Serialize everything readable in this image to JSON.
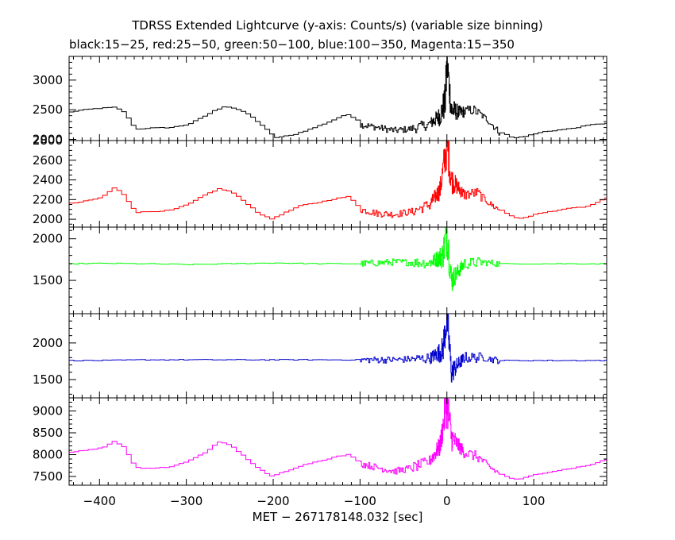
{
  "title": "TDRSS Extended Lightcurve (y-axis: Counts/s) (variable size binning)",
  "subtitle": "black:15−25, red:25−50, green:50−100, blue:100−350, Magenta:15−350",
  "xlabel": "MET − 267178148.032 [sec]",
  "chart_data": {
    "type": "line",
    "x_range": [
      -435,
      184
    ],
    "x_ticks": [
      -400,
      -300,
      -200,
      -100,
      0,
      100
    ],
    "x_tick_labels": [
      "−400",
      "−300",
      "−200",
      "−100",
      "0",
      "100"
    ],
    "burst_time": 0,
    "panels": [
      {
        "name": "black",
        "color": "#000000",
        "ylim": [
          1980,
          3400
        ],
        "y_ticks": [
          2000,
          2500,
          3000
        ],
        "y_minor_step": 100,
        "segments": [
          [
            -435,
            2460
          ],
          [
            -425,
            2490
          ],
          [
            -405,
            2520
          ],
          [
            -385,
            2540
          ],
          [
            -375,
            2480
          ],
          [
            -360,
            2170
          ],
          [
            -345,
            2190
          ],
          [
            -320,
            2200
          ],
          [
            -300,
            2250
          ],
          [
            -285,
            2360
          ],
          [
            -270,
            2480
          ],
          [
            -258,
            2560
          ],
          [
            -245,
            2520
          ],
          [
            -230,
            2420
          ],
          [
            -215,
            2240
          ],
          [
            -200,
            2030
          ],
          [
            -180,
            2070
          ],
          [
            -160,
            2170
          ],
          [
            -140,
            2280
          ],
          [
            -125,
            2380
          ],
          [
            -115,
            2420
          ],
          [
            -105,
            2330
          ],
          [
            -100,
            2250
          ],
          [
            -80,
            2200
          ],
          [
            -60,
            2150
          ],
          [
            -40,
            2180
          ],
          [
            -20,
            2260
          ],
          [
            -8,
            2400
          ],
          [
            -2,
            2650
          ],
          [
            0,
            3300
          ],
          [
            5,
            2500
          ],
          [
            15,
            2450
          ],
          [
            30,
            2500
          ],
          [
            45,
            2350
          ],
          [
            60,
            2120
          ],
          [
            75,
            2020
          ],
          [
            90,
            2060
          ],
          [
            110,
            2130
          ],
          [
            140,
            2180
          ],
          [
            170,
            2260
          ],
          [
            184,
            2270
          ]
        ]
      },
      {
        "name": "red",
        "color": "#ff0000",
        "ylim": [
          1920,
          2800
        ],
        "y_ticks": [
          2000,
          2200,
          2400,
          2600,
          2800
        ],
        "y_minor_step": 50,
        "segments": [
          [
            -435,
            2160
          ],
          [
            -420,
            2180
          ],
          [
            -400,
            2220
          ],
          [
            -385,
            2320
          ],
          [
            -375,
            2260
          ],
          [
            -360,
            2070
          ],
          [
            -340,
            2080
          ],
          [
            -320,
            2090
          ],
          [
            -300,
            2150
          ],
          [
            -280,
            2250
          ],
          [
            -265,
            2310
          ],
          [
            -250,
            2280
          ],
          [
            -235,
            2180
          ],
          [
            -220,
            2070
          ],
          [
            -205,
            2000
          ],
          [
            -190,
            2060
          ],
          [
            -170,
            2140
          ],
          [
            -150,
            2170
          ],
          [
            -130,
            2210
          ],
          [
            -115,
            2230
          ],
          [
            -100,
            2100
          ],
          [
            -80,
            2060
          ],
          [
            -60,
            2050
          ],
          [
            -40,
            2080
          ],
          [
            -20,
            2150
          ],
          [
            -8,
            2300
          ],
          [
            0,
            2780
          ],
          [
            5,
            2400
          ],
          [
            20,
            2250
          ],
          [
            35,
            2270
          ],
          [
            50,
            2150
          ],
          [
            65,
            2070
          ],
          [
            80,
            2000
          ],
          [
            100,
            2050
          ],
          [
            130,
            2100
          ],
          [
            160,
            2130
          ],
          [
            184,
            2220
          ]
        ]
      },
      {
        "name": "green",
        "color": "#00ff00",
        "ylim": [
          1100,
          2140
        ],
        "y_ticks": [
          1500,
          2000
        ],
        "y_minor_step": 100,
        "segments": [
          [
            -435,
            1700
          ],
          [
            -400,
            1705
          ],
          [
            -350,
            1700
          ],
          [
            -300,
            1690
          ],
          [
            -250,
            1700
          ],
          [
            -200,
            1710
          ],
          [
            -150,
            1700
          ],
          [
            -100,
            1700
          ],
          [
            -60,
            1720
          ],
          [
            -20,
            1710
          ],
          [
            -5,
            1800
          ],
          [
            0,
            2100
          ],
          [
            5,
            1500
          ],
          [
            20,
            1700
          ],
          [
            40,
            1720
          ],
          [
            60,
            1700
          ],
          [
            100,
            1700
          ],
          [
            140,
            1700
          ],
          [
            184,
            1700
          ]
        ]
      },
      {
        "name": "blue",
        "color": "#0000cc",
        "ylim": [
          1250,
          2400
        ],
        "y_ticks": [
          1500,
          2000
        ],
        "y_minor_step": 100,
        "segments": [
          [
            -435,
            1760
          ],
          [
            -400,
            1760
          ],
          [
            -350,
            1770
          ],
          [
            -300,
            1770
          ],
          [
            -250,
            1770
          ],
          [
            -200,
            1770
          ],
          [
            -150,
            1770
          ],
          [
            -100,
            1770
          ],
          [
            -60,
            1770
          ],
          [
            -20,
            1790
          ],
          [
            -5,
            1900
          ],
          [
            0,
            2380
          ],
          [
            5,
            1600
          ],
          [
            20,
            1800
          ],
          [
            40,
            1800
          ],
          [
            60,
            1760
          ],
          [
            100,
            1760
          ],
          [
            140,
            1760
          ],
          [
            184,
            1760
          ]
        ]
      },
      {
        "name": "magenta",
        "color": "#ff00ff",
        "ylim": [
          7300,
          9300
        ],
        "y_ticks": [
          7500,
          8000,
          8500,
          9000
        ],
        "y_minor_step": 100,
        "segments": [
          [
            -435,
            8050
          ],
          [
            -420,
            8100
          ],
          [
            -400,
            8150
          ],
          [
            -385,
            8300
          ],
          [
            -375,
            8200
          ],
          [
            -360,
            7700
          ],
          [
            -340,
            7680
          ],
          [
            -320,
            7720
          ],
          [
            -300,
            7850
          ],
          [
            -280,
            8050
          ],
          [
            -265,
            8300
          ],
          [
            -250,
            8200
          ],
          [
            -235,
            7950
          ],
          [
            -220,
            7700
          ],
          [
            -205,
            7500
          ],
          [
            -190,
            7600
          ],
          [
            -170,
            7750
          ],
          [
            -150,
            7850
          ],
          [
            -130,
            7950
          ],
          [
            -115,
            8000
          ],
          [
            -100,
            7800
          ],
          [
            -80,
            7700
          ],
          [
            -60,
            7620
          ],
          [
            -40,
            7700
          ],
          [
            -20,
            7850
          ],
          [
            -8,
            8200
          ],
          [
            0,
            9250
          ],
          [
            5,
            8400
          ],
          [
            20,
            8050
          ],
          [
            35,
            7950
          ],
          [
            50,
            7700
          ],
          [
            65,
            7500
          ],
          [
            80,
            7420
          ],
          [
            100,
            7550
          ],
          [
            130,
            7650
          ],
          [
            160,
            7750
          ],
          [
            184,
            7900
          ]
        ]
      }
    ]
  }
}
